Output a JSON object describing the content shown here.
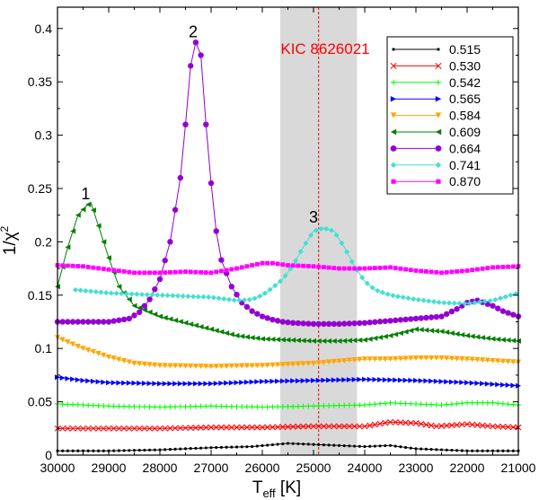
{
  "chart_data": {
    "type": "line",
    "xlabel": {
      "main": "T",
      "sub": "eff",
      "unit": " [K]"
    },
    "ylabel": {
      "main": "1/χ",
      "sup": "2"
    },
    "xlim": [
      30000,
      21000
    ],
    "ylim": [
      0,
      0.42
    ],
    "x_ticks": [
      30000,
      29000,
      28000,
      27000,
      26000,
      25000,
      24000,
      23000,
      22000,
      21000
    ],
    "y_ticks": [
      0,
      0.05,
      0.1,
      0.15,
      0.2,
      0.25,
      0.3,
      0.35,
      0.4
    ],
    "y_tick_labels": [
      "0",
      "0.05",
      "0.1",
      "0.15",
      "0.2",
      "0.25",
      "0.3",
      "0.35",
      "0.4"
    ],
    "grid": false,
    "legend_position": "top-right",
    "band": {
      "x_from": 25650,
      "x_to": 24150,
      "color": "#d9d9d9"
    },
    "star": {
      "label": "KIC 8626021",
      "x": 24900,
      "color": "#ff0000"
    },
    "peak_labels": [
      {
        "text": "1",
        "x": 29450,
        "y": 0.24
      },
      {
        "text": "2",
        "x": 27350,
        "y": 0.392
      },
      {
        "text": "3",
        "x": 25000,
        "y": 0.218
      }
    ],
    "series": [
      {
        "name": "0.515",
        "color": "#000000",
        "marker": "dot",
        "step": 100,
        "points": [
          [
            30000,
            0.004
          ],
          [
            29000,
            0.004
          ],
          [
            28000,
            0.005
          ],
          [
            27000,
            0.007
          ],
          [
            26200,
            0.008
          ],
          [
            25500,
            0.011
          ],
          [
            25000,
            0.01
          ],
          [
            24500,
            0.009
          ],
          [
            24000,
            0.008
          ],
          [
            23500,
            0.009
          ],
          [
            23000,
            0.006
          ],
          [
            22500,
            0.005
          ],
          [
            22000,
            0.004
          ],
          [
            21000,
            0.004
          ]
        ]
      },
      {
        "name": "0.530",
        "color": "#ff0000",
        "marker": "x",
        "step": 100,
        "points": [
          [
            30000,
            0.025
          ],
          [
            29000,
            0.025
          ],
          [
            28000,
            0.025
          ],
          [
            27000,
            0.026
          ],
          [
            26000,
            0.026
          ],
          [
            25000,
            0.027
          ],
          [
            24000,
            0.027
          ],
          [
            23500,
            0.031
          ],
          [
            23000,
            0.03
          ],
          [
            22600,
            0.027
          ],
          [
            22000,
            0.029
          ],
          [
            21500,
            0.027
          ],
          [
            21000,
            0.026
          ]
        ]
      },
      {
        "name": "0.542",
        "color": "#00ff00",
        "marker": "plus",
        "step": 100,
        "points": [
          [
            30000,
            0.048
          ],
          [
            29000,
            0.046
          ],
          [
            28000,
            0.045
          ],
          [
            27000,
            0.046
          ],
          [
            26000,
            0.045
          ],
          [
            25000,
            0.046
          ],
          [
            24000,
            0.047
          ],
          [
            23500,
            0.049
          ],
          [
            23000,
            0.048
          ],
          [
            22500,
            0.047
          ],
          [
            22000,
            0.049
          ],
          [
            21500,
            0.049
          ],
          [
            21000,
            0.047
          ]
        ]
      },
      {
        "name": "0.565",
        "color": "#0000ff",
        "marker": "triangle-right",
        "step": 100,
        "points": [
          [
            30000,
            0.073
          ],
          [
            29500,
            0.07
          ],
          [
            29000,
            0.068
          ],
          [
            28000,
            0.067
          ],
          [
            27000,
            0.067
          ],
          [
            26000,
            0.069
          ],
          [
            25000,
            0.07
          ],
          [
            24000,
            0.071
          ],
          [
            23000,
            0.07
          ],
          [
            22000,
            0.068
          ],
          [
            21000,
            0.065
          ]
        ]
      },
      {
        "name": "0.584",
        "color": "#ffa500",
        "marker": "triangle-down",
        "step": 100,
        "points": [
          [
            30000,
            0.11
          ],
          [
            29500,
            0.1
          ],
          [
            29000,
            0.092
          ],
          [
            28500,
            0.086
          ],
          [
            28000,
            0.084
          ],
          [
            27000,
            0.083
          ],
          [
            26000,
            0.084
          ],
          [
            25000,
            0.086
          ],
          [
            24500,
            0.088
          ],
          [
            24000,
            0.09
          ],
          [
            23500,
            0.09
          ],
          [
            23000,
            0.091
          ],
          [
            22500,
            0.091
          ],
          [
            22000,
            0.09
          ],
          [
            21000,
            0.087
          ]
        ]
      },
      {
        "name": "0.609",
        "color": "#008000",
        "marker": "triangle-left",
        "step": 100,
        "points": [
          [
            30000,
            0.158
          ],
          [
            29800,
            0.195
          ],
          [
            29600,
            0.225
          ],
          [
            29450,
            0.233
          ],
          [
            29350,
            0.237
          ],
          [
            29200,
            0.215
          ],
          [
            29000,
            0.185
          ],
          [
            28800,
            0.158
          ],
          [
            28500,
            0.14
          ],
          [
            28000,
            0.13
          ],
          [
            27500,
            0.124
          ],
          [
            27000,
            0.118
          ],
          [
            26500,
            0.112
          ],
          [
            26000,
            0.109
          ],
          [
            25500,
            0.108
          ],
          [
            25000,
            0.107
          ],
          [
            24500,
            0.107
          ],
          [
            24000,
            0.108
          ],
          [
            23500,
            0.112
          ],
          [
            23000,
            0.118
          ],
          [
            22500,
            0.116
          ],
          [
            22000,
            0.112
          ],
          [
            21500,
            0.109
          ],
          [
            21000,
            0.107
          ]
        ]
      },
      {
        "name": "0.664",
        "color": "#9400d3",
        "marker": "circle",
        "step": 100,
        "points": [
          [
            30000,
            0.125
          ],
          [
            29000,
            0.125
          ],
          [
            28600,
            0.128
          ],
          [
            28400,
            0.134
          ],
          [
            28200,
            0.146
          ],
          [
            28000,
            0.165
          ],
          [
            27800,
            0.2
          ],
          [
            27600,
            0.26
          ],
          [
            27500,
            0.31
          ],
          [
            27400,
            0.365
          ],
          [
            27300,
            0.387
          ],
          [
            27200,
            0.375
          ],
          [
            27100,
            0.31
          ],
          [
            27000,
            0.255
          ],
          [
            26900,
            0.21
          ],
          [
            26800,
            0.183
          ],
          [
            26600,
            0.158
          ],
          [
            26400,
            0.143
          ],
          [
            26200,
            0.135
          ],
          [
            26000,
            0.13
          ],
          [
            25800,
            0.127
          ],
          [
            25600,
            0.125
          ],
          [
            25400,
            0.124
          ],
          [
            25000,
            0.123
          ],
          [
            24500,
            0.123
          ],
          [
            24000,
            0.124
          ],
          [
            23500,
            0.126
          ],
          [
            23000,
            0.128
          ],
          [
            22500,
            0.13
          ],
          [
            22200,
            0.137
          ],
          [
            22000,
            0.143
          ],
          [
            21800,
            0.145
          ],
          [
            21500,
            0.14
          ],
          [
            21300,
            0.135
          ],
          [
            21000,
            0.13
          ]
        ]
      },
      {
        "name": "0.741",
        "color": "#40e0d0",
        "marker": "diamond",
        "step": 100,
        "points": [
          [
            29650,
            0.155
          ],
          [
            29000,
            0.152
          ],
          [
            28000,
            0.15
          ],
          [
            27000,
            0.148
          ],
          [
            26500,
            0.145
          ],
          [
            26200,
            0.146
          ],
          [
            26000,
            0.15
          ],
          [
            25800,
            0.157
          ],
          [
            25600,
            0.165
          ],
          [
            25400,
            0.178
          ],
          [
            25200,
            0.195
          ],
          [
            25000,
            0.21
          ],
          [
            24800,
            0.213
          ],
          [
            24600,
            0.21
          ],
          [
            24400,
            0.195
          ],
          [
            24200,
            0.177
          ],
          [
            24000,
            0.163
          ],
          [
            23800,
            0.155
          ],
          [
            23500,
            0.15
          ],
          [
            23000,
            0.146
          ],
          [
            22500,
            0.143
          ],
          [
            22000,
            0.142
          ],
          [
            21500,
            0.145
          ],
          [
            21000,
            0.152
          ]
        ]
      },
      {
        "name": "0.870",
        "color": "#ff00ff",
        "marker": "square",
        "step": 100,
        "points": [
          [
            30000,
            0.178
          ],
          [
            29500,
            0.177
          ],
          [
            29000,
            0.174
          ],
          [
            28500,
            0.171
          ],
          [
            28000,
            0.171
          ],
          [
            27500,
            0.172
          ],
          [
            27000,
            0.171
          ],
          [
            26500,
            0.175
          ],
          [
            26000,
            0.18
          ],
          [
            25800,
            0.18
          ],
          [
            25500,
            0.178
          ],
          [
            25000,
            0.177
          ],
          [
            24500,
            0.175
          ],
          [
            24000,
            0.175
          ],
          [
            23500,
            0.176
          ],
          [
            23000,
            0.173
          ],
          [
            22500,
            0.171
          ],
          [
            22000,
            0.173
          ],
          [
            21500,
            0.176
          ],
          [
            21000,
            0.177
          ]
        ]
      }
    ]
  }
}
